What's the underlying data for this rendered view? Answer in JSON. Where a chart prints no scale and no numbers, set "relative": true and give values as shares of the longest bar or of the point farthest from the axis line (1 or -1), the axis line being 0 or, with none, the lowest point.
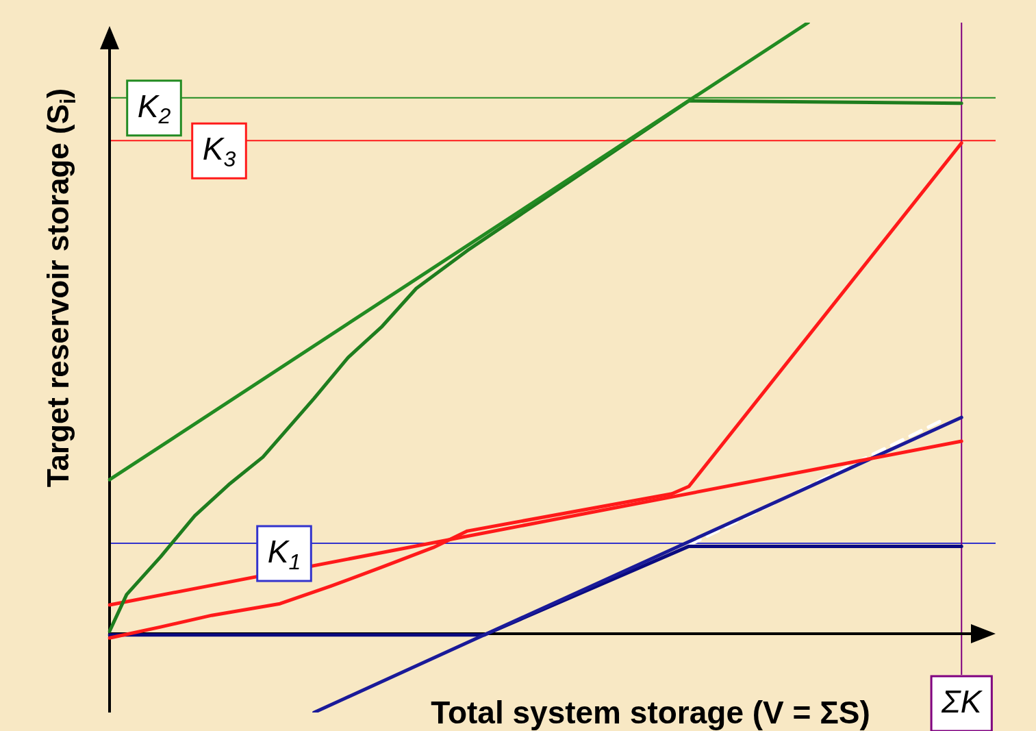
{
  "chart_data": {
    "type": "line",
    "relative": true,
    "xlabel": "Total system storage (V = ΣS)",
    "ylabel": "Target reservoir storage (S$_{i}$)",
    "categories": [
      null,
      null,
      null,
      null,
      null,
      null,
      null,
      null,
      null,
      null,
      null,
      null,
      null,
      null,
      null,
      null,
      null,
      null,
      null,
      null,
      null,
      null,
      null,
      null,
      null,
      null,
      null,
      null,
      null,
      null,
      null,
      null,
      null,
      null,
      null,
      null,
      null,
      null,
      null,
      null,
      null,
      null,
      null,
      null,
      null,
      null,
      null,
      null,
      null,
      null,
      null,
      null,
      null
    ],
    "legend": false,
    "marker": "none",
    "series": [
      {
        "color": "#228b22",
        "values": [
          0.252,
          null,
          null,
          null,
          null,
          null,
          null,
          null,
          null,
          null,
          null,
          null,
          null,
          null,
          null,
          null,
          null,
          null,
          null,
          null,
          null,
          null,
          null,
          null,
          null,
          null,
          null,
          null,
          null,
          null,
          null,
          null,
          null,
          null,
          null,
          null,
          null,
          null,
          null,
          null,
          null,
          1.0,
          null,
          null,
          null,
          null,
          null,
          null,
          null,
          null,
          null,
          null,
          null
        ]
      },
      {
        "color": "#1e7d1e",
        "values": [
          0.004,
          0.064,
          null,
          0.126,
          null,
          0.193,
          null,
          0.244,
          null,
          0.289,
          null,
          null,
          0.385,
          null,
          0.452,
          null,
          0.503,
          null,
          0.565,
          null,
          null,
          0.627,
          null,
          null,
          null,
          null,
          null,
          null,
          null,
          null,
          null,
          null,
          null,
          null,
          0.872,
          null,
          null,
          null,
          null,
          null,
          null,
          null,
          null,
          null,
          null,
          null,
          null,
          null,
          null,
          null,
          0.868,
          null,
          null
        ]
      },
      {
        "color": "#ff1a1a",
        "values": [
          0.047,
          null,
          null,
          null,
          null,
          null,
          null,
          null,
          null,
          null,
          null,
          null,
          null,
          null,
          null,
          null,
          null,
          null,
          null,
          null,
          null,
          null,
          null,
          null,
          null,
          null,
          null,
          null,
          null,
          null,
          null,
          null,
          null,
          null,
          null,
          null,
          null,
          null,
          null,
          null,
          null,
          null,
          null,
          null,
          null,
          null,
          null,
          null,
          null,
          null,
          0.315,
          null,
          null
        ]
      },
      {
        "color": "#ff1a1a",
        "values": [
          -0.007,
          null,
          null,
          0.011,
          null,
          null,
          0.03,
          null,
          null,
          null,
          0.049,
          null,
          null,
          0.078,
          null,
          null,
          0.109,
          null,
          null,
          0.141,
          null,
          0.168,
          null,
          null,
          null,
          null,
          null,
          null,
          null,
          null,
          null,
          null,
          null,
          0.229,
          0.241,
          null,
          null,
          null,
          null,
          null,
          null,
          null,
          null,
          null,
          null,
          null,
          null,
          null,
          null,
          null,
          0.803,
          null,
          null
        ]
      },
      {
        "color": "#1a1a99",
        "values": [
          null,
          null,
          null,
          null,
          null,
          null,
          null,
          null,
          null,
          null,
          null,
          null,
          -0.129,
          null,
          null,
          null,
          null,
          null,
          null,
          null,
          null,
          null,
          null,
          null,
          null,
          null,
          null,
          null,
          null,
          null,
          null,
          null,
          null,
          null,
          null,
          null,
          null,
          null,
          null,
          null,
          null,
          null,
          null,
          null,
          null,
          null,
          null,
          null,
          null,
          null,
          0.354,
          null,
          null
        ]
      },
      {
        "color": "#0a0a80",
        "values": [
          -0.002,
          null,
          null,
          null,
          null,
          null,
          null,
          null,
          null,
          null,
          null,
          null,
          null,
          null,
          null,
          null,
          null,
          null,
          null,
          null,
          null,
          null,
          -0.002,
          null,
          null,
          null,
          null,
          null,
          null,
          null,
          null,
          null,
          null,
          null,
          0.143,
          null,
          null,
          null,
          null,
          null,
          null,
          null,
          null,
          null,
          null,
          null,
          null,
          null,
          null,
          null,
          0.143,
          null,
          null
        ]
      },
      {
        "color": "#ffffff",
        "line_style": "dashed",
        "values": [
          null,
          null,
          null,
          null,
          null,
          null,
          null,
          null,
          null,
          null,
          null,
          null,
          null,
          null,
          null,
          null,
          null,
          null,
          null,
          null,
          null,
          null,
          null,
          null,
          null,
          null,
          null,
          null,
          null,
          null,
          null,
          null,
          null,
          null,
          0.145,
          null,
          null,
          null,
          null,
          null,
          null,
          null,
          null,
          null,
          null,
          null,
          null,
          null,
          null,
          0.351,
          null,
          null,
          null
        ]
      }
    ],
    "ref_lines": [
      {
        "axis": "y",
        "value": 0.877,
        "label": "K$_{2}$",
        "color": "#228b22"
      },
      {
        "axis": "y",
        "value": 0.807,
        "label": "K$_{3}$",
        "color": "#ff1a1a"
      },
      {
        "axis": "y",
        "value": 0.148,
        "label": "K$_{1}$",
        "color": "#3333cc"
      },
      {
        "axis": "x",
        "label": "ΣK",
        "color": "#800080"
      }
    ]
  }
}
